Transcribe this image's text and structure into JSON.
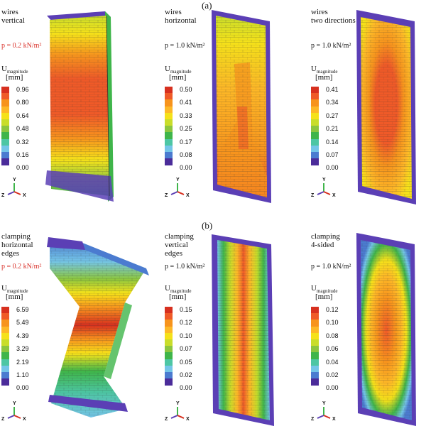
{
  "parts": {
    "a": "(a)",
    "b": "(b)"
  },
  "panels": [
    {
      "title1": "wires",
      "title2": "vertical",
      "pressure": "p = 0.2 kN/m²",
      "pressure_color": "#d9312a",
      "legend": [
        "0.96",
        "0.80",
        "0.64",
        "0.48",
        "0.32",
        "0.16",
        "0.00"
      ]
    },
    {
      "title1": "wires",
      "title2": "horizontal",
      "pressure": "p = 1.0 kN/m²",
      "pressure_color": "#111111",
      "legend": [
        "0.50",
        "0.41",
        "0.33",
        "0.25",
        "0.17",
        "0.08",
        "0.00"
      ]
    },
    {
      "title1": "wires",
      "title2": "two directions",
      "pressure": "p = 1.0 kN/m²",
      "pressure_color": "#111111",
      "legend": [
        "0.41",
        "0.34",
        "0.27",
        "0.21",
        "0.14",
        "0.07",
        "0.00"
      ]
    },
    {
      "title1": "clamping",
      "title2": "horizontal",
      "title3": "edges",
      "pressure": "p = 0.2 kN/m²",
      "pressure_color": "#d9312a",
      "legend": [
        "6.59",
        "5.49",
        "4.39",
        "3.29",
        "2.19",
        "1.10",
        "0.00"
      ]
    },
    {
      "title1": "clamping",
      "title2": "vertical",
      "title3": "edges",
      "pressure": "p = 1.0 kN/m²",
      "pressure_color": "#111111",
      "legend": [
        "0.15",
        "0.12",
        "0.10",
        "0.07",
        "0.05",
        "0.02",
        "0.00"
      ]
    },
    {
      "title1": "clamping",
      "title2": "4-sided",
      "pressure": "p = 1.0 kN/m²",
      "pressure_color": "#111111",
      "legend": [
        "0.12",
        "0.10",
        "0.08",
        "0.06",
        "0.04",
        "0.02",
        "0.00"
      ]
    }
  ],
  "u_label": "U",
  "u_sub": "magnitude",
  "unit": "[mm]",
  "axes": {
    "y": "Y",
    "z": "Z",
    "x": "X"
  },
  "colors": {
    "scale": [
      "#d7301f",
      "#ef5a28",
      "#f7941d",
      "#fdb827",
      "#f5e11a",
      "#c9dd2a",
      "#8cc63f",
      "#3fb54a",
      "#4dc6a4",
      "#74c5e8",
      "#4b7bd0",
      "#4b2c9a"
    ]
  }
}
